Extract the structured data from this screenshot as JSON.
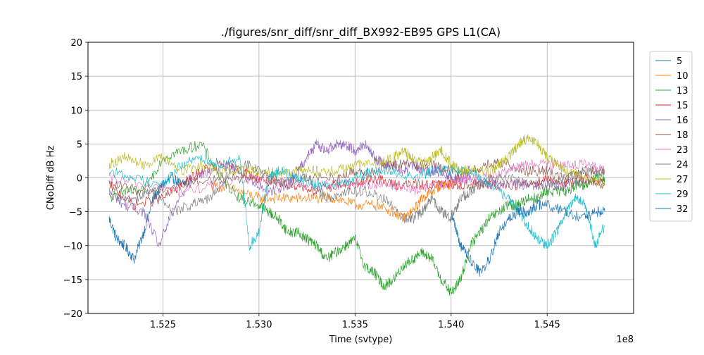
{
  "chart_data": {
    "type": "line",
    "title": "./figures/snr_diff/snr_diff_BX992-EB95 GPS  L1(CA)",
    "xlabel": "Time (svtype)",
    "ylabel": "CNoDiff dB Hz",
    "x_offset_label": "1e8",
    "xlim": [
      1.5211,
      1.5495
    ],
    "ylim": [
      -20,
      20
    ],
    "x_ticks": [
      1.525,
      1.53,
      1.535,
      1.54,
      1.545
    ],
    "x_tick_labels": [
      "1.525",
      "1.530",
      "1.535",
      "1.540",
      "1.545"
    ],
    "y_ticks": [
      -20,
      -15,
      -10,
      -5,
      0,
      5,
      10,
      15,
      20
    ],
    "y_tick_labels": [
      "−20",
      "−15",
      "−10",
      "−5",
      "0",
      "5",
      "10",
      "15",
      "20"
    ],
    "grid": true,
    "legend_position": "outside-right",
    "series": [
      {
        "name": "5",
        "color": "#1f77b4",
        "points": [
          [
            1.5222,
            -6
          ],
          [
            1.5226,
            -9
          ],
          [
            1.523,
            -10
          ],
          [
            1.5235,
            -12
          ],
          [
            1.524,
            -8
          ],
          [
            1.5245,
            -3
          ],
          [
            1.525,
            -1
          ],
          [
            1.5255,
            0
          ],
          [
            1.526,
            -1
          ],
          [
            1.5265,
            0
          ]
        ]
      },
      {
        "name": "10",
        "color": "#ff7f0e",
        "points": [
          [
            1.5275,
            -1
          ],
          [
            1.529,
            -2
          ],
          [
            1.53,
            -3
          ],
          [
            1.531,
            -3
          ],
          [
            1.532,
            -3
          ],
          [
            1.533,
            -3
          ],
          [
            1.534,
            -3
          ],
          [
            1.535,
            -4
          ],
          [
            1.536,
            -4
          ],
          [
            1.537,
            -5
          ],
          [
            1.5375,
            -6
          ],
          [
            1.538,
            -5
          ],
          [
            1.5385,
            -3
          ],
          [
            1.539,
            -2
          ],
          [
            1.5395,
            -1
          ],
          [
            1.54,
            -1
          ],
          [
            1.5405,
            0
          ]
        ]
      },
      {
        "name": "13",
        "color": "#2ca02c",
        "points": [
          [
            1.5222,
            -3
          ],
          [
            1.523,
            -2
          ],
          [
            1.524,
            -2
          ],
          [
            1.525,
            3
          ],
          [
            1.526,
            4
          ],
          [
            1.527,
            5
          ],
          [
            1.528,
            0
          ],
          [
            1.529,
            -3
          ],
          [
            1.53,
            -4
          ],
          [
            1.5305,
            -5
          ],
          [
            1.531,
            -6
          ],
          [
            1.5315,
            -8
          ],
          [
            1.532,
            -8
          ],
          [
            1.5325,
            -9
          ],
          [
            1.533,
            -10
          ],
          [
            1.5335,
            -12
          ],
          [
            1.534,
            -11
          ],
          [
            1.5345,
            -10
          ],
          [
            1.535,
            -9
          ],
          [
            1.5355,
            -13
          ],
          [
            1.536,
            -14
          ],
          [
            1.5365,
            -16
          ],
          [
            1.537,
            -15
          ],
          [
            1.5375,
            -13
          ],
          [
            1.538,
            -12
          ],
          [
            1.5385,
            -11
          ],
          [
            1.539,
            -12
          ],
          [
            1.5395,
            -15
          ],
          [
            1.54,
            -17
          ],
          [
            1.5405,
            -15
          ],
          [
            1.541,
            -10
          ],
          [
            1.5415,
            -8
          ],
          [
            1.542,
            -6
          ],
          [
            1.5425,
            -5
          ],
          [
            1.543,
            -4
          ],
          [
            1.5435,
            -4
          ],
          [
            1.544,
            -3
          ],
          [
            1.5445,
            -3
          ],
          [
            1.545,
            -2
          ],
          [
            1.5455,
            -2
          ],
          [
            1.546,
            -2
          ],
          [
            1.5465,
            -1
          ],
          [
            1.547,
            -1
          ],
          [
            1.5475,
            0
          ],
          [
            1.548,
            0
          ]
        ]
      },
      {
        "name": "15",
        "color": "#d62728",
        "points": [
          [
            1.5222,
            -1
          ],
          [
            1.5235,
            -4
          ],
          [
            1.525,
            -3
          ],
          [
            1.526,
            -1
          ],
          [
            1.527,
            1
          ],
          [
            1.528,
            2
          ],
          [
            1.529,
            1
          ],
          [
            1.53,
            0
          ],
          [
            1.531,
            -1
          ],
          [
            1.532,
            -1
          ],
          [
            1.533,
            -2
          ],
          [
            1.534,
            -1
          ],
          [
            1.535,
            -1
          ],
          [
            1.536,
            0
          ],
          [
            1.537,
            -1
          ],
          [
            1.538,
            -1
          ],
          [
            1.539,
            -1
          ],
          [
            1.54,
            -1
          ],
          [
            1.541,
            -1
          ],
          [
            1.542,
            -1
          ],
          [
            1.543,
            -1
          ],
          [
            1.544,
            -1
          ],
          [
            1.545,
            0
          ],
          [
            1.546,
            -1
          ],
          [
            1.547,
            0
          ],
          [
            1.548,
            -1
          ]
        ]
      },
      {
        "name": "16",
        "color": "#9467bd",
        "points": [
          [
            1.5222,
            -2
          ],
          [
            1.523,
            -4
          ],
          [
            1.524,
            -5
          ],
          [
            1.5248,
            -10
          ],
          [
            1.5255,
            -5
          ],
          [
            1.5265,
            0
          ],
          [
            1.5275,
            1
          ],
          [
            1.5285,
            2
          ],
          [
            1.5295,
            0
          ],
          [
            1.5305,
            -2
          ],
          [
            1.5315,
            -1
          ],
          [
            1.532,
            1
          ],
          [
            1.5325,
            3
          ],
          [
            1.533,
            5
          ],
          [
            1.5335,
            4
          ],
          [
            1.534,
            5
          ],
          [
            1.5345,
            5
          ],
          [
            1.535,
            4
          ],
          [
            1.5355,
            5
          ],
          [
            1.536,
            3
          ],
          [
            1.5365,
            2
          ],
          [
            1.537,
            2
          ],
          [
            1.5375,
            1
          ],
          [
            1.538,
            2
          ],
          [
            1.5385,
            1
          ],
          [
            1.539,
            1
          ],
          [
            1.5395,
            1
          ],
          [
            1.54,
            0
          ],
          [
            1.5405,
            0
          ],
          [
            1.541,
            0
          ],
          [
            1.542,
            -1
          ],
          [
            1.543,
            -1
          ],
          [
            1.544,
            -1
          ],
          [
            1.545,
            -1
          ],
          [
            1.546,
            -1
          ],
          [
            1.547,
            0
          ],
          [
            1.548,
            -1
          ]
        ]
      },
      {
        "name": "18",
        "color": "#8c564b",
        "points": [
          [
            1.5222,
            -1
          ],
          [
            1.524,
            -2
          ],
          [
            1.526,
            -1
          ],
          [
            1.528,
            0
          ],
          [
            1.53,
            0
          ],
          [
            1.532,
            0
          ],
          [
            1.534,
            0
          ],
          [
            1.535,
            1
          ],
          [
            1.536,
            1
          ],
          [
            1.537,
            2
          ],
          [
            1.538,
            2
          ],
          [
            1.539,
            2
          ],
          [
            1.54,
            1
          ],
          [
            1.541,
            1
          ],
          [
            1.542,
            2
          ],
          [
            1.543,
            2
          ],
          [
            1.544,
            1
          ],
          [
            1.545,
            1
          ],
          [
            1.546,
            0
          ],
          [
            1.547,
            1
          ],
          [
            1.548,
            1
          ]
        ]
      },
      {
        "name": "23",
        "color": "#e377c2",
        "points": [
          [
            1.5222,
            0
          ],
          [
            1.524,
            -1
          ],
          [
            1.526,
            -2
          ],
          [
            1.528,
            -1
          ],
          [
            1.53,
            0
          ],
          [
            1.532,
            -1
          ],
          [
            1.534,
            -1
          ],
          [
            1.535,
            -1
          ],
          [
            1.536,
            -1
          ],
          [
            1.537,
            -1
          ],
          [
            1.538,
            -2
          ],
          [
            1.539,
            -1
          ],
          [
            1.54,
            -1
          ],
          [
            1.541,
            0
          ],
          [
            1.542,
            0
          ],
          [
            1.543,
            1
          ],
          [
            1.544,
            2
          ],
          [
            1.545,
            2
          ],
          [
            1.546,
            2
          ],
          [
            1.547,
            2
          ],
          [
            1.548,
            1
          ]
        ]
      },
      {
        "name": "24",
        "color": "#7f7f7f",
        "points": [
          [
            1.5222,
            -3
          ],
          [
            1.5235,
            -3
          ],
          [
            1.5245,
            -2
          ],
          [
            1.5255,
            -5
          ],
          [
            1.5265,
            -4
          ],
          [
            1.5275,
            -3
          ],
          [
            1.5285,
            1
          ],
          [
            1.5295,
            2
          ],
          [
            1.5305,
            0
          ],
          [
            1.5315,
            -1
          ],
          [
            1.5325,
            0
          ],
          [
            1.5335,
            -3
          ],
          [
            1.5345,
            -2
          ],
          [
            1.5355,
            -2
          ],
          [
            1.5365,
            -3
          ],
          [
            1.5375,
            -6
          ],
          [
            1.538,
            -6
          ],
          [
            1.5385,
            -5
          ],
          [
            1.539,
            -3
          ],
          [
            1.5395,
            -5
          ],
          [
            1.54,
            -6
          ],
          [
            1.5405,
            -3
          ],
          [
            1.541,
            -2
          ],
          [
            1.5415,
            -1
          ],
          [
            1.542,
            0
          ],
          [
            1.543,
            0
          ],
          [
            1.544,
            -1
          ],
          [
            1.545,
            -1
          ],
          [
            1.546,
            0
          ],
          [
            1.547,
            1
          ],
          [
            1.548,
            1
          ]
        ]
      },
      {
        "name": "27",
        "color": "#bcbd22",
        "points": [
          [
            1.5222,
            2
          ],
          [
            1.523,
            3
          ],
          [
            1.524,
            2
          ],
          [
            1.525,
            3
          ],
          [
            1.526,
            1
          ],
          [
            1.527,
            2
          ],
          [
            1.528,
            1
          ],
          [
            1.529,
            1
          ],
          [
            1.53,
            1
          ],
          [
            1.531,
            1
          ],
          [
            1.532,
            1
          ],
          [
            1.533,
            1
          ],
          [
            1.534,
            1
          ],
          [
            1.535,
            2
          ],
          [
            1.536,
            2
          ],
          [
            1.537,
            3
          ],
          [
            1.5375,
            4
          ],
          [
            1.538,
            3
          ],
          [
            1.5385,
            2
          ],
          [
            1.539,
            3
          ],
          [
            1.5395,
            4
          ],
          [
            1.54,
            2
          ],
          [
            1.5405,
            1
          ],
          [
            1.541,
            1
          ],
          [
            1.542,
            1
          ],
          [
            1.5425,
            2
          ],
          [
            1.543,
            3
          ],
          [
            1.5435,
            5
          ],
          [
            1.544,
            6
          ],
          [
            1.5445,
            5
          ],
          [
            1.545,
            3
          ],
          [
            1.5455,
            2
          ],
          [
            1.546,
            1
          ],
          [
            1.547,
            0
          ],
          [
            1.548,
            -1
          ]
        ]
      },
      {
        "name": "29",
        "color": "#17becf",
        "points": [
          [
            1.5222,
            1
          ],
          [
            1.5235,
            0
          ],
          [
            1.525,
            -1
          ],
          [
            1.526,
            2
          ],
          [
            1.527,
            3
          ],
          [
            1.528,
            2
          ],
          [
            1.529,
            3
          ],
          [
            1.5295,
            -10
          ],
          [
            1.53,
            -8
          ],
          [
            1.5305,
            0
          ],
          [
            1.531,
            1
          ],
          [
            1.532,
            0
          ],
          [
            1.533,
            -1
          ],
          [
            1.534,
            -1
          ],
          [
            1.535,
            0
          ],
          [
            1.536,
            1
          ],
          [
            1.537,
            1
          ],
          [
            1.538,
            0
          ],
          [
            1.539,
            1
          ],
          [
            1.54,
            1
          ],
          [
            1.541,
            1
          ],
          [
            1.542,
            -1
          ],
          [
            1.543,
            -3
          ],
          [
            1.5435,
            -5
          ],
          [
            1.544,
            -7
          ],
          [
            1.5445,
            -9
          ],
          [
            1.545,
            -10
          ],
          [
            1.5455,
            -8
          ],
          [
            1.546,
            -5
          ],
          [
            1.5465,
            -3
          ],
          [
            1.547,
            -4
          ],
          [
            1.5475,
            -10
          ],
          [
            1.548,
            -7
          ]
        ]
      },
      {
        "name": "32",
        "color": "#1f77b4",
        "points": [
          [
            1.54,
            -5
          ],
          [
            1.5405,
            -10
          ],
          [
            1.541,
            -12
          ],
          [
            1.5415,
            -14
          ],
          [
            1.542,
            -12
          ],
          [
            1.5425,
            -8
          ],
          [
            1.543,
            -6
          ],
          [
            1.5435,
            -5
          ],
          [
            1.544,
            -5
          ],
          [
            1.5445,
            -4
          ],
          [
            1.545,
            -4
          ],
          [
            1.546,
            -5
          ],
          [
            1.547,
            -6
          ],
          [
            1.5475,
            -5
          ],
          [
            1.548,
            -5
          ]
        ]
      }
    ]
  }
}
